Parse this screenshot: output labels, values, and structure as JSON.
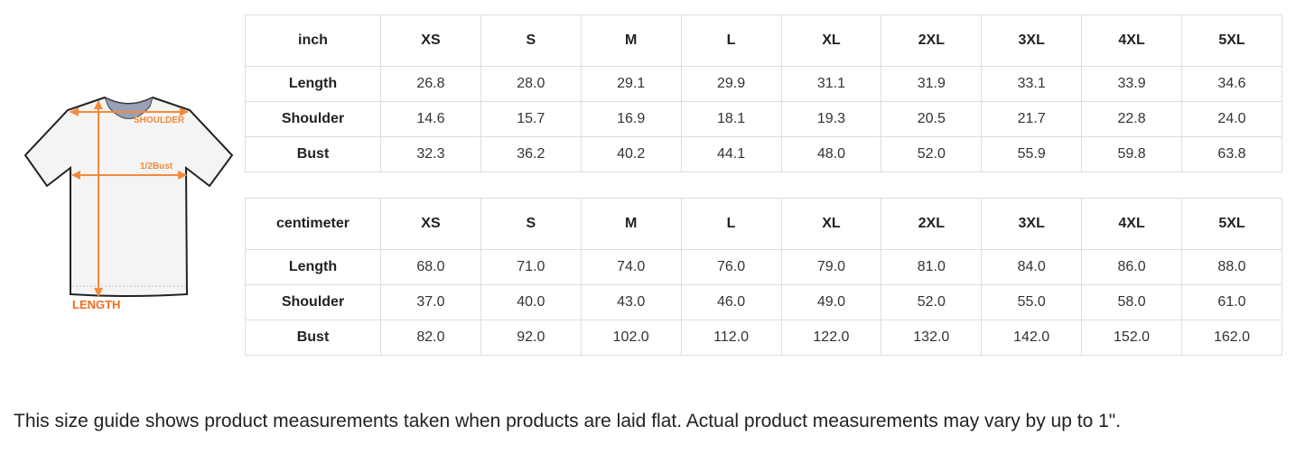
{
  "illustration": {
    "labels": {
      "shoulder": "SHOULDER",
      "bust": "1/2Bust",
      "length": "LENGTH"
    },
    "accent_color": "#f58220"
  },
  "sizes": [
    "XS",
    "S",
    "M",
    "L",
    "XL",
    "2XL",
    "3XL",
    "4XL",
    "5XL"
  ],
  "tables": [
    {
      "unit": "inch",
      "rows": [
        {
          "label": "Length",
          "values": [
            "26.8",
            "28.0",
            "29.1",
            "29.9",
            "31.1",
            "31.9",
            "33.1",
            "33.9",
            "34.6"
          ]
        },
        {
          "label": "Shoulder",
          "values": [
            "14.6",
            "15.7",
            "16.9",
            "18.1",
            "19.3",
            "20.5",
            "21.7",
            "22.8",
            "24.0"
          ]
        },
        {
          "label": "Bust",
          "values": [
            "32.3",
            "36.2",
            "40.2",
            "44.1",
            "48.0",
            "52.0",
            "55.9",
            "59.8",
            "63.8"
          ]
        }
      ]
    },
    {
      "unit": "centimeter",
      "rows": [
        {
          "label": "Length",
          "values": [
            "68.0",
            "71.0",
            "74.0",
            "76.0",
            "79.0",
            "81.0",
            "84.0",
            "86.0",
            "88.0"
          ]
        },
        {
          "label": "Shoulder",
          "values": [
            "37.0",
            "40.0",
            "43.0",
            "46.0",
            "49.0",
            "52.0",
            "55.0",
            "58.0",
            "61.0"
          ]
        },
        {
          "label": "Bust",
          "values": [
            "82.0",
            "92.0",
            "102.0",
            "112.0",
            "122.0",
            "132.0",
            "142.0",
            "152.0",
            "162.0"
          ]
        }
      ]
    }
  ],
  "footnote": "This size guide shows product measurements taken when products are laid flat. Actual product measurements may vary by up to 1\"."
}
